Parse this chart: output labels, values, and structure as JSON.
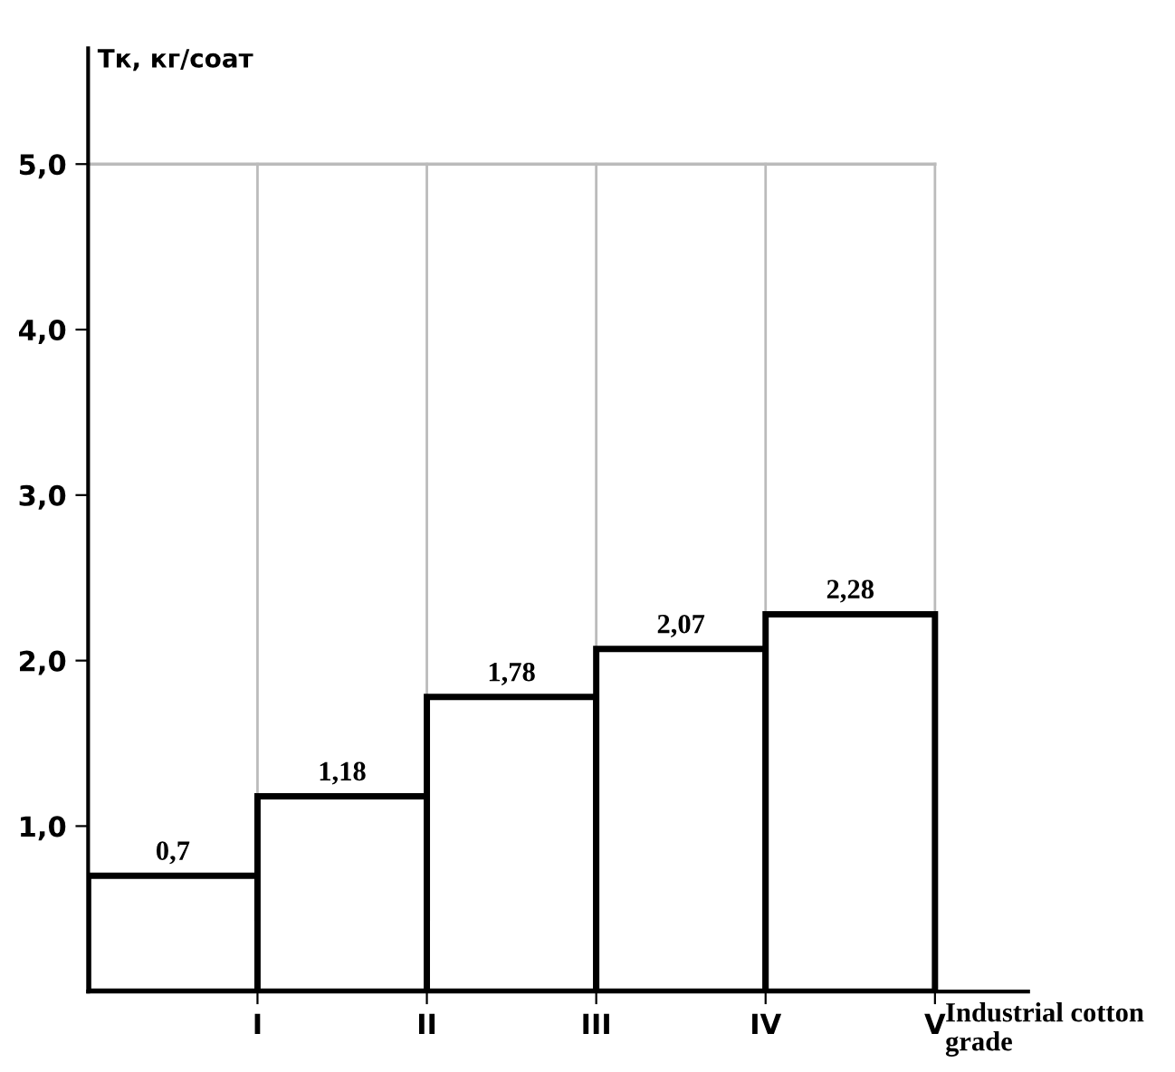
{
  "chart_data": {
    "type": "bar",
    "categories": [
      "I",
      "II",
      "III",
      "IV",
      "V"
    ],
    "values": [
      0.7,
      1.18,
      1.78,
      2.07,
      2.28
    ],
    "value_labels": [
      "0,7",
      "1,18",
      "1,78",
      "2,07",
      "2,28"
    ],
    "color": "#ffffff",
    "xlabel": "Industrial cotton grade",
    "ylabel": "Тк, кг/соат",
    "ylim": [
      0,
      5.7
    ],
    "yticks": [
      {
        "value": 1,
        "label": "1,0"
      },
      {
        "value": 2,
        "label": "2,0"
      },
      {
        "value": 3,
        "label": "3,0"
      },
      {
        "value": 4,
        "label": "4,0"
      },
      {
        "value": 5,
        "label": "5,0"
      }
    ],
    "grid": "x",
    "ref_lines": [
      {
        "axis": "y",
        "value": 5,
        "label": null,
        "color": "#bbbbbb"
      }
    ]
  }
}
